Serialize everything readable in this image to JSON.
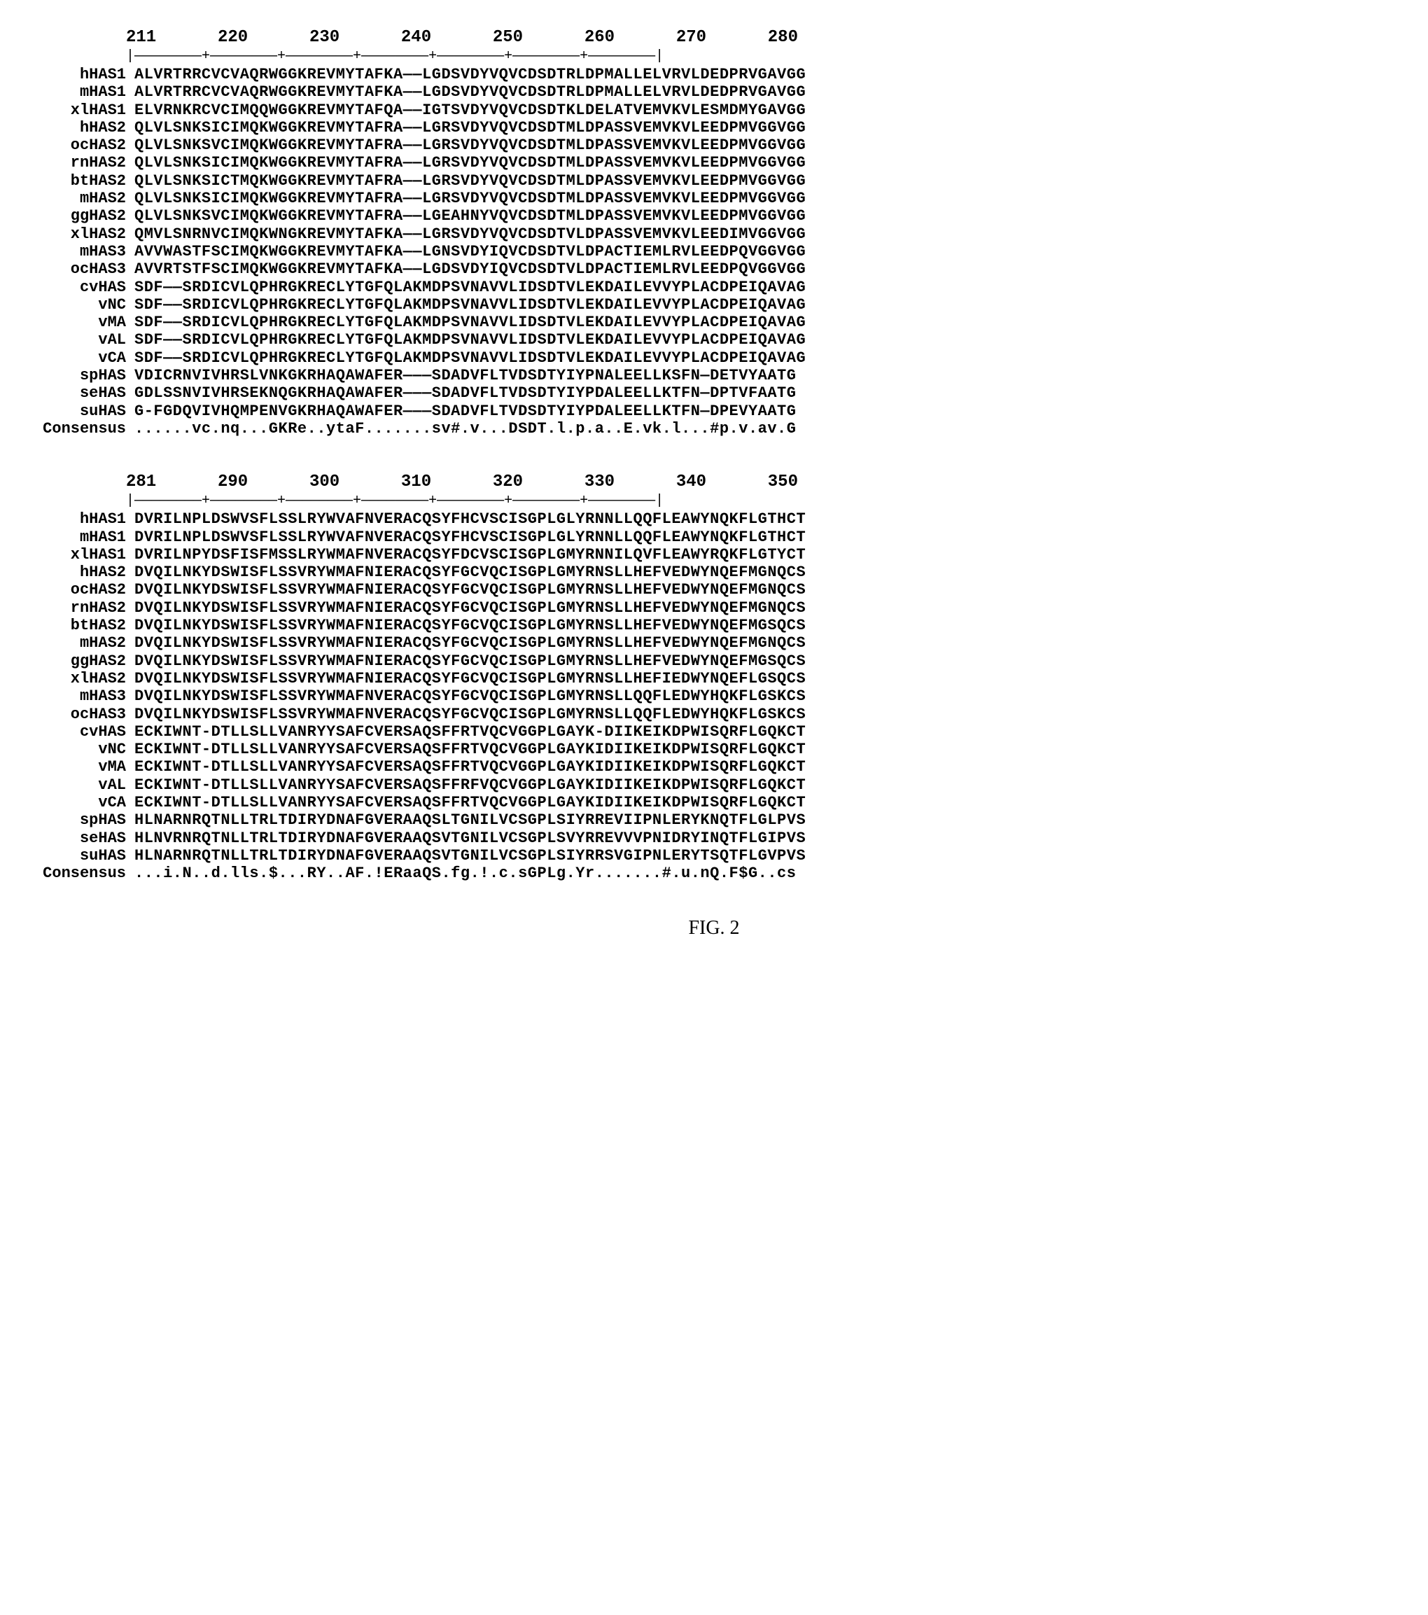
{
  "figure_caption": "FIG. 2",
  "blocks": [
    {
      "ruler_start": 211,
      "ruler_end": 280,
      "ruler_positions": [
        211,
        220,
        230,
        240,
        250,
        260,
        270,
        280
      ],
      "sequences": [
        {
          "label": "hHAS1",
          "seq": "ALVRTRRCVCVAQRWGGKREVMYTAFKA——LGDSVDYVQVCDSDTRLDPMALLELVRVLDEDPRVGAVGG"
        },
        {
          "label": "mHAS1",
          "seq": "ALVRTRRCVCVAQRWGGKREVMYTAFKA——LGDSVDYVQVCDSDTRLDPMALLELVRVLDEDPRVGAVGG"
        },
        {
          "label": "xlHAS1",
          "seq": "ELVRNKRCVCIMQQWGGKREVMYTAFQA——IGTSVDYVQVCDSDTKLDELATVEMVKVLESMDMYGAVGG"
        },
        {
          "label": "hHAS2",
          "seq": "QLVLSNKSICIMQKWGGKREVMYTAFRA——LGRSVDYVQVCDSDTMLDPASSVEMVKVLEEDPMVGGVGG"
        },
        {
          "label": "ocHAS2",
          "seq": "QLVLSNKSVCIMQKWGGKREVMYTAFRA——LGRSVDYVQVCDSDTMLDPASSVEMVKVLEEDPMVGGVGG"
        },
        {
          "label": "rnHAS2",
          "seq": "QLVLSNKSICIMQKWGGKREVMYTAFRA——LGRSVDYVQVCDSDTMLDPASSVEMVKVLEEDPMVGGVGG"
        },
        {
          "label": "btHAS2",
          "seq": "QLVLSNKSICTMQKWGGKREVMYTAFRA——LGRSVDYVQVCDSDTMLDPASSVEMVKVLEEDPMVGGVGG"
        },
        {
          "label": "mHAS2",
          "seq": "QLVLSNKSICIMQKWGGKREVMYTAFRA——LGRSVDYVQVCDSDTMLDPASSVEMVKVLEEDPMVGGVGG"
        },
        {
          "label": "ggHAS2",
          "seq": "QLVLSNKSVCIMQKWGGKREVMYTAFRA——LGEAHNYVQVCDSDTMLDPASSVEMVKVLEEDPMVGGVGG"
        },
        {
          "label": "xlHAS2",
          "seq": "QMVLSNRNVCIMQKWNGKREVMYTAFKA——LGRSVDYVQVCDSDTVLDPASSVEMVKVLEEDIMVGGVGG"
        },
        {
          "label": "mHAS3",
          "seq": "AVVWASTFSCIMQKWGGKREVMYTAFKA——LGNSVDYIQVCDSDTVLDPACTIEMLRVLEEDPQVGGVGG"
        },
        {
          "label": "ocHAS3",
          "seq": "AVVRTSTFSCIMQKWGGKREVMYTAFKA——LGDSVDYIQVCDSDTVLDPACTIEMLRVLEEDPQVGGVGG"
        },
        {
          "label": "cvHAS",
          "seq": "SDF——SRDICVLQPHRGKRECLYTGFQLAKMDPSVNAVVLIDSDTVLEKDAILEVVYPLACDPEIQAVAG"
        },
        {
          "label": "vNC",
          "seq": "SDF——SRDICVLQPHRGKRECLYTGFQLAKMDPSVNAVVLIDSDTVLEKDAILEVVYPLACDPEIQAVAG"
        },
        {
          "label": "vMA",
          "seq": "SDF——SRDICVLQPHRGKRECLYTGFQLAKMDPSVNAVVLIDSDTVLEKDAILEVVYPLACDPEIQAVAG"
        },
        {
          "label": "vAL",
          "seq": "SDF——SRDICVLQPHRGKRECLYTGFQLAKMDPSVNAVVLIDSDTVLEKDAILEVVYPLACDPEIQAVAG"
        },
        {
          "label": "vCA",
          "seq": "SDF——SRDICVLQPHRGKRECLYTGFQLAKMDPSVNAVVLIDSDTVLEKDAILEVVYPLACDPEIQAVAG"
        },
        {
          "label": "spHAS",
          "seq": "VDICRNVIVHRSLVNKGKRHAQAWAFER———SDADVFLTVDSDTYIYPNALEELLKSFN—DETVYAATG"
        },
        {
          "label": "seHAS",
          "seq": "GDLSSNVIVHRSEKNQGKRHAQAWAFER———SDADVFLTVDSDTYIYPDALEELLKTFN—DPTVFAATG"
        },
        {
          "label": "suHAS",
          "seq": "G-FGDQVIVHQMPENVGKRHAQAWAFER———SDADVFLTVDSDTYIYPDALEELLKTFN—DPEVYAATG"
        },
        {
          "label": "Consensus",
          "seq": "......vc.nq...GKRe..ytaF.......sv#.v...DSDT.l.p.a..E.vk.l...#p.v.av.G"
        }
      ]
    },
    {
      "ruler_start": 281,
      "ruler_end": 350,
      "ruler_positions": [
        281,
        290,
        300,
        310,
        320,
        330,
        340,
        350
      ],
      "sequences": [
        {
          "label": "hHAS1",
          "seq": "DVRILNPLDSWVSFLSSLRYWVAFNVERACQSYFHCVSCISGPLGLYRNNLLQQFLEAWYNQKFLGTHCT"
        },
        {
          "label": "mHAS1",
          "seq": "DVRILNPLDSWVSFLSSLRYWVAFNVERACQSYFHCVSCISGPLGLYRNNLLQQFLEAWYNQKFLGTHCT"
        },
        {
          "label": "xlHAS1",
          "seq": "DVRILNPYDSFISFMSSLRYWMAFNVERACQSYFDCVSCISGPLGMYRNNILQVFLEAWYRQKFLGTYCT"
        },
        {
          "label": "hHAS2",
          "seq": "DVQILNKYDSWISFLSSVRYWMAFNIERACQSYFGCVQCISGPLGMYRNSLLHEFVEDWYNQEFMGNQCS"
        },
        {
          "label": "ocHAS2",
          "seq": "DVQILNKYDSWISFLSSVRYWMAFNIERACQSYFGCVQCISGPLGMYRNSLLHEFVEDWYNQEFMGNQCS"
        },
        {
          "label": "rnHAS2",
          "seq": "DVQILNKYDSWISFLSSVRYWMAFNIERACQSYFGCVQCISGPLGMYRNSLLHEFVEDWYNQEFMGNQCS"
        },
        {
          "label": "btHAS2",
          "seq": "DVQILNKYDSWISFLSSVRYWMAFNIERACQSYFGCVQCISGPLGMYRNSLLHEFVEDWYNQEFMGSQCS"
        },
        {
          "label": "mHAS2",
          "seq": "DVQILNKYDSWISFLSSVRYWMAFNIERACQSYFGCVQCISGPLGMYRNSLLHEFVEDWYNQEFMGNQCS"
        },
        {
          "label": "ggHAS2",
          "seq": "DVQILNKYDSWISFLSSVRYWMAFNIERACQSYFGCVQCISGPLGMYRNSLLHEFVEDWYNQEFMGSQCS"
        },
        {
          "label": "xlHAS2",
          "seq": "DVQILNKYDSWISFLSSVRYWMAFNIERACQSYFGCVQCISGPLGMYRNSLLHEFIEDWYNQEFLGSQCS"
        },
        {
          "label": "mHAS3",
          "seq": "DVQILNKYDSWISFLSSVRYWMAFNVERACQSYFGCVQCISGPLGMYRNSLLQQFLEDWYHQKFLGSKCS"
        },
        {
          "label": "ocHAS3",
          "seq": "DVQILNKYDSWISFLSSVRYWMAFNVERACQSYFGCVQCISGPLGMYRNSLLQQFLEDWYHQKFLGSKCS"
        },
        {
          "label": "cvHAS",
          "seq": "ECKIWNT-DTLLSLLVANRYYSAFCVERSAQSFFRTVQCVGGPLGAYK-DIIKEIKDPWISQRFLGQKCT"
        },
        {
          "label": "vNC",
          "seq": "ECKIWNT-DTLLSLLVANRYYSAFCVERSAQSFFRTVQCVGGPLGAYKIDIIKEIKDPWISQRFLGQKCT"
        },
        {
          "label": "vMA",
          "seq": "ECKIWNT-DTLLSLLVANRYYSAFCVERSAQSFFRTVQCVGGPLGAYKIDIIKEIKDPWISQRFLGQKCT"
        },
        {
          "label": "vAL",
          "seq": "ECKIWNT-DTLLSLLVANRYYSAFCVERSAQSFFRFVQCVGGPLGAYKIDIIKEIKDPWISQRFLGQKCT"
        },
        {
          "label": "vCA",
          "seq": "ECKIWNT-DTLLSLLVANRYYSAFCVERSAQSFFRTVQCVGGPLGAYKIDIIKEIKDPWISQRFLGQKCT"
        },
        {
          "label": "spHAS",
          "seq": "HLNARNRQTNLLTRLTDIRYDNAFGVERAAQSLTGNILVCSGPLSIYRREVIIPNLERYKNQTFLGLPVS"
        },
        {
          "label": "seHAS",
          "seq": "HLNVRNRQTNLLTRLTDIRYDNAFGVERAAQSVTGNILVCSGPLSVYRREVVVPNIDRYINQTFLGIPVS"
        },
        {
          "label": "suHAS",
          "seq": "HLNARNRQTNLLTRLTDIRYDNAFGVERAAQSVTGNILVCSGPLSIYRRSVGIPNLERYTSQTFLGVPVS"
        },
        {
          "label": "Consensus",
          "seq": "...i.N..d.lls.$...RY..AF.!ERaaQS.fg.!.c.sGPLg.Yr.......#.u.nQ.F$G..cs"
        }
      ]
    }
  ]
}
